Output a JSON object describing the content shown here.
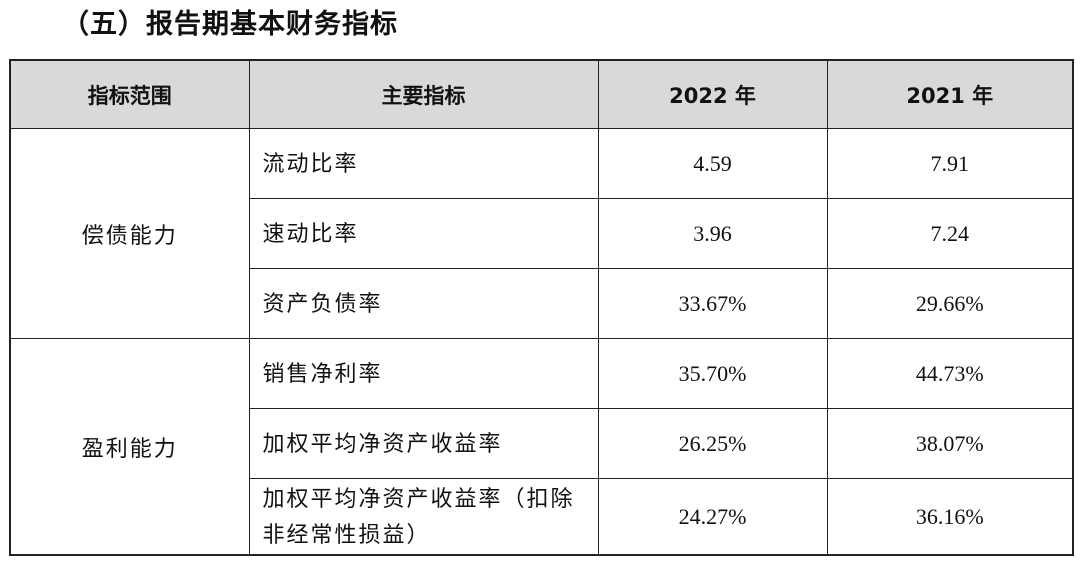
{
  "title": "（五）报告期基本财务指标",
  "table": {
    "header": [
      "指标范围",
      "主要指标",
      "2022 年",
      "2021 年"
    ],
    "groups": [
      {
        "label": "偿债能力",
        "rows": [
          [
            "流动比率",
            "4.59",
            "7.91"
          ],
          [
            "速动比率",
            "3.96",
            "7.24"
          ],
          [
            "资产负债率",
            "33.67%",
            "29.66%"
          ]
        ]
      },
      {
        "label": "盈利能力",
        "rows": [
          [
            "销售净利率",
            "35.70%",
            "44.73%"
          ],
          [
            "加权平均净资产收益率",
            "26.25%",
            "38.07%"
          ],
          [
            "加权平均净资产收益率（扣除非经常性损益）",
            "24.27%",
            "36.16%"
          ]
        ]
      }
    ]
  }
}
